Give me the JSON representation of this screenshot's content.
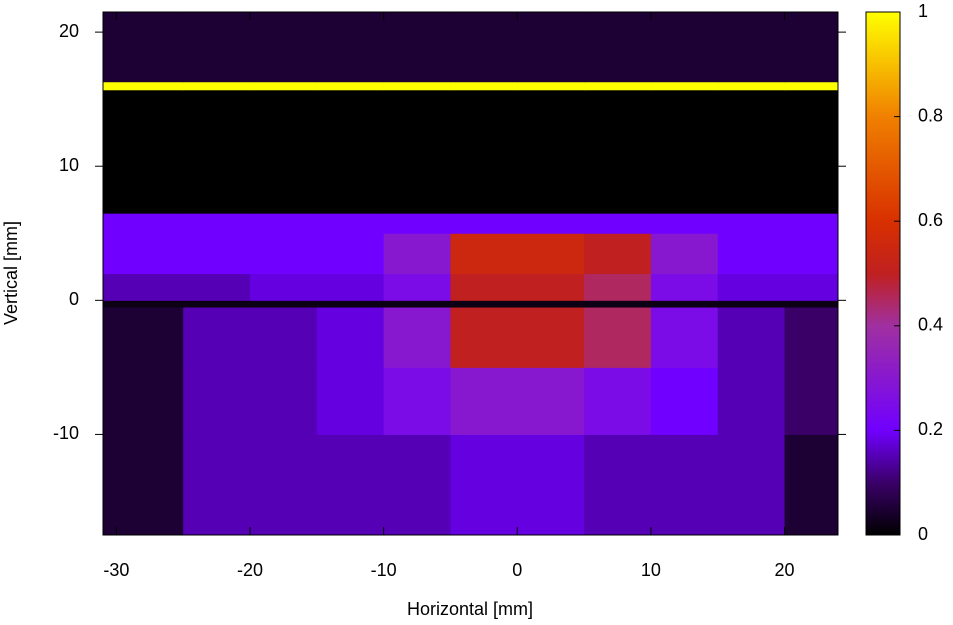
{
  "chart_data": {
    "type": "heatmap",
    "xlabel": "Horizontal [mm]",
    "ylabel": "Vertical [mm]",
    "x": [
      -31,
      -25,
      -20,
      -15,
      -10,
      -5,
      0,
      5,
      10,
      15,
      20,
      24
    ],
    "y": [
      -17.5,
      -10,
      -5,
      -0.5,
      0,
      2,
      5,
      6.5,
      15.7,
      16.3,
      21.5
    ],
    "z": [
      [
        0.05,
        0.15,
        0.15,
        0.15,
        0.15,
        0.18,
        0.18,
        0.15,
        0.15,
        0.15,
        0.05
      ],
      [
        0.05,
        0.15,
        0.15,
        0.18,
        0.25,
        0.3,
        0.3,
        0.25,
        0.2,
        0.15,
        0.1
      ],
      [
        0.05,
        0.15,
        0.15,
        0.18,
        0.3,
        0.5,
        0.5,
        0.45,
        0.25,
        0.15,
        0.1
      ],
      [
        0.02,
        0.02,
        0.02,
        0.02,
        0.02,
        0.02,
        0.02,
        0.02,
        0.02,
        0.02,
        0.02
      ],
      [
        0.15,
        0.15,
        0.18,
        0.18,
        0.25,
        0.5,
        0.5,
        0.45,
        0.25,
        0.18,
        0.18
      ],
      [
        0.2,
        0.2,
        0.2,
        0.2,
        0.3,
        0.55,
        0.55,
        0.5,
        0.3,
        0.2,
        0.2
      ],
      [
        0.2,
        0.2,
        0.2,
        0.2,
        0.2,
        0.2,
        0.2,
        0.2,
        0.2,
        0.2,
        0.2
      ],
      [
        0,
        0,
        0,
        0,
        0,
        0,
        0,
        0,
        0,
        0,
        0
      ],
      [
        1,
        1,
        1,
        1,
        1,
        1,
        1,
        1,
        1,
        1,
        1
      ],
      [
        0.05,
        0.05,
        0.05,
        0.05,
        0.05,
        0.05,
        0.05,
        0.05,
        0.05,
        0.05,
        0.05
      ]
    ],
    "xlim": [
      -31,
      24
    ],
    "ylim": [
      -17.5,
      21.5
    ],
    "xticks": [
      -30,
      -20,
      -10,
      0,
      10,
      20
    ],
    "yticks": [
      -10,
      0,
      10,
      20
    ],
    "zlim": [
      0,
      1
    ],
    "zticks": [
      0,
      0.2,
      0.4,
      0.6,
      0.8,
      1
    ],
    "colorscale": [
      [
        0,
        "#000000"
      ],
      [
        0.1,
        "#3a0068"
      ],
      [
        0.2,
        "#7000ff"
      ],
      [
        0.4,
        "#a030a0"
      ],
      [
        0.5,
        "#c02020"
      ],
      [
        0.6,
        "#d83000"
      ],
      [
        0.8,
        "#f08000"
      ],
      [
        1,
        "#ffff00"
      ]
    ]
  }
}
